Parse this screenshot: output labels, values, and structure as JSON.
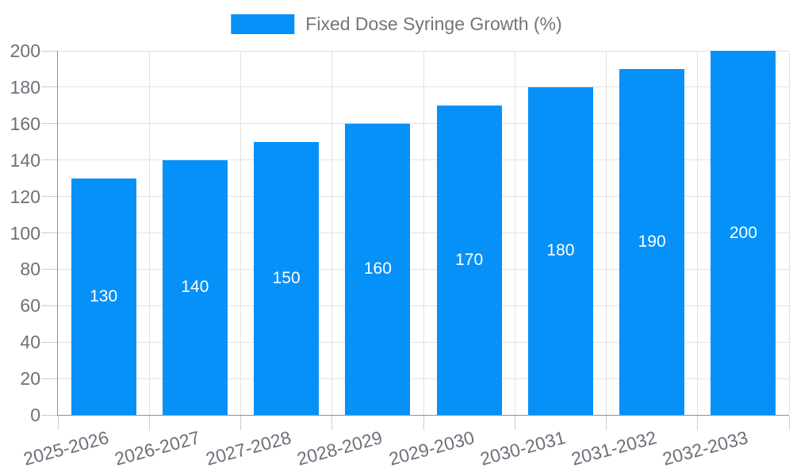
{
  "chart_data": {
    "type": "bar",
    "title": "",
    "legend": [
      "Fixed Dose Syringe Growth (%)"
    ],
    "legend_position": "top-center",
    "categories": [
      "2025-2026",
      "2026-2027",
      "2027-2028",
      "2028-2029",
      "2029-2030",
      "2030-2031",
      "2031-2032",
      "2032-2033"
    ],
    "series": [
      {
        "name": "Fixed Dose Syringe Growth (%)",
        "values": [
          130,
          140,
          150,
          160,
          170,
          180,
          190,
          200
        ]
      }
    ],
    "bar_value_labels": [
      "130",
      "140",
      "150",
      "160",
      "170",
      "180",
      "190",
      "200"
    ],
    "xlabel": "",
    "ylabel": "",
    "ylim": [
      0,
      200
    ],
    "yticks": [
      0,
      20,
      40,
      60,
      80,
      100,
      120,
      140,
      160,
      180,
      200
    ],
    "grid": true
  },
  "colors": {
    "bar": "#0691f8",
    "bar_value_label": "#ffffff",
    "grid_line": "#e2e2e2",
    "tick_line": "#cdcdcd",
    "axis_line": "#909094",
    "axis_text": "#6e7079",
    "legend_text": "#757579",
    "background": "#ffffff"
  }
}
